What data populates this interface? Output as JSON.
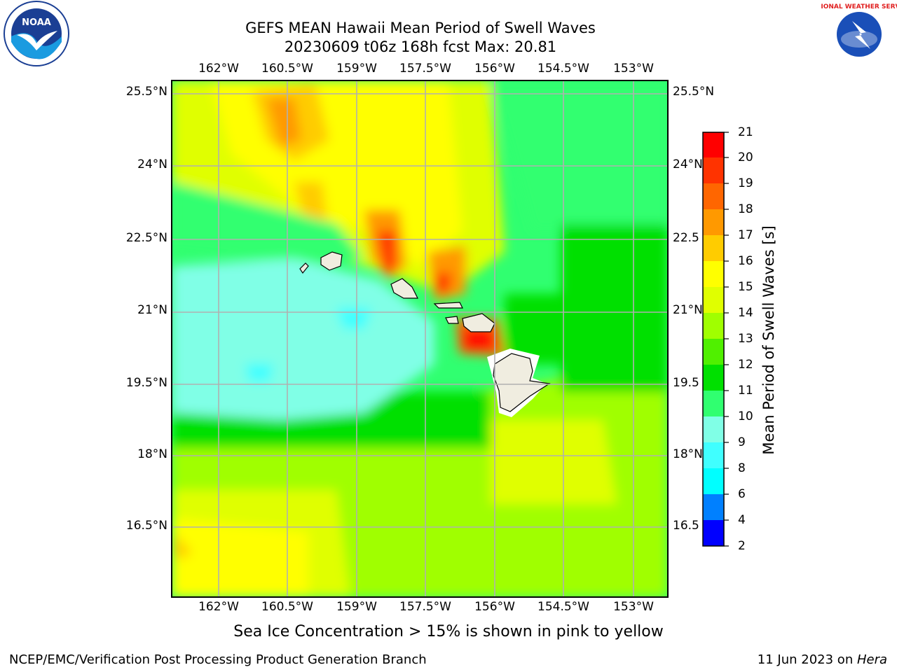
{
  "title_line1": "GEFS MEAN Hawaii Mean Period of Swell Waves",
  "title_line2": "20230609 t06z 168h fcst   Max: 20.81",
  "caption": "Sea Ice Concentration > 15% is shown in pink to yellow",
  "footer_left": "NCEP/EMC/Verification Post Processing Product Generation Branch",
  "footer_date": "11 Jun 2023 on ",
  "footer_host": "Hera",
  "logos": {
    "left": "NOAA",
    "right_text": "NATIONAL WEATHER SERVICE"
  },
  "longitude_labels": [
    "162°W",
    "160.5°W",
    "159°W",
    "157.5°W",
    "156°W",
    "154.5°W",
    "153°W"
  ],
  "latitude_labels": [
    "25.5°N",
    "24°N",
    "22.5°N",
    "21°N",
    "19.5°N",
    "18°N",
    "16.5°N"
  ],
  "latitude_labels_right": [
    "25.5°N",
    "24°N",
    "22.5",
    "21°N",
    "19.5",
    "18°N",
    "16.5"
  ],
  "colorbar": {
    "label": "Mean Period of Swell Waves [s]",
    "ticks": [
      "2",
      "4",
      "6",
      "8",
      "9",
      "10",
      "11",
      "12",
      "13",
      "14",
      "15",
      "16",
      "17",
      "18",
      "19",
      "20",
      "21"
    ],
    "colors": [
      "#0000ff",
      "#0080ff",
      "#00ffff",
      "#40ffff",
      "#80ffe6",
      "#30ff70",
      "#00e000",
      "#50f000",
      "#a0ff00",
      "#e0ff00",
      "#ffff00",
      "#ffcc00",
      "#ff9900",
      "#ff6600",
      "#ff3300",
      "#ff0000"
    ]
  },
  "map_colors": {
    "ocean_low": "#80ffe6",
    "mid": "#30ff70",
    "green": "#00e000",
    "yellow_green": "#a0ff00",
    "yellow": "#ffff00",
    "orange": "#ff9900",
    "red": "#ff0000",
    "land": "#f0ede0",
    "grid": "#b0b0b0"
  }
}
